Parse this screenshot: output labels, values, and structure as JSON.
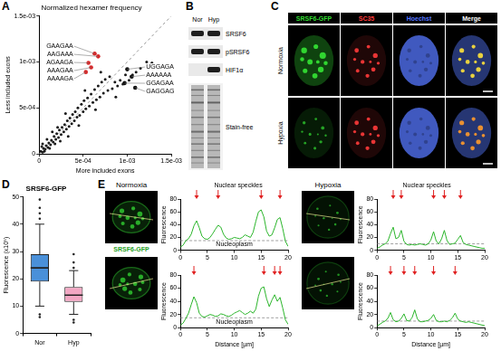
{
  "chart_data": [
    {
      "panel": "A",
      "type": "scatter",
      "title": "Normalized hexamer frequency",
      "xlabel": "More included exons",
      "ylabel": "Less included exons",
      "x": [
        2e-05,
        4e-05,
        5e-05,
        7e-05,
        8e-05,
        0.0001,
        0.00011,
        0.00013,
        0.00014,
        0.00016,
        0.00017,
        0.00019,
        0.0002,
        0.00022,
        0.00023,
        0.00025,
        0.00026,
        0.00028,
        0.00029,
        0.00031,
        0.00032,
        0.00034,
        0.00035,
        0.00037,
        0.00038,
        0.0004,
        0.00041,
        0.00043,
        0.00044,
        0.00046,
        0.00048,
        0.0005,
        0.00051,
        0.00053,
        0.00055,
        0.00057,
        0.00059,
        0.00061,
        0.00063,
        0.00065,
        0.00067,
        0.00069,
        0.00071,
        0.00073,
        0.00075,
        0.00078,
        0.0008,
        0.00083,
        0.00086,
        0.00089,
        0.00092,
        0.00095,
        0.00098,
        0.00102,
        0.00106,
        0.0011,
        0.00115,
        0.00122,
        0.00128,
        0.00015,
        0.00024,
        0.0003,
        0.00045,
        0.00052,
        0.00064,
        0.00033,
        9e-05,
        0.0007,
        0.00087,
        3e-05,
        6e-05,
        0.00012,
        4e-05,
        0.00018,
        0.00021
      ],
      "values": [
        3e-05,
        2e-05,
        6e-05,
        5e-05,
        9e-05,
        7e-05,
        0.00012,
        0.0001,
        0.00015,
        0.00013,
        0.00019,
        0.00016,
        0.00022,
        0.00018,
        0.00026,
        0.00021,
        0.00029,
        0.00024,
        0.00032,
        0.00027,
        0.00036,
        0.0003,
        0.00039,
        0.00033,
        0.00043,
        0.00036,
        0.00046,
        0.0004,
        0.0005,
        0.00042,
        0.00054,
        0.00046,
        0.00058,
        0.00049,
        0.00061,
        0.00052,
        0.00065,
        0.00056,
        0.0007,
        0.00059,
        0.00074,
        0.00062,
        0.00078,
        0.00066,
        0.00081,
        0.00069,
        0.00084,
        0.00071,
        0.00078,
        0.00074,
        0.0008,
        0.00076,
        0.00086,
        0.0008,
        0.00086,
        0.00089,
        0.00093,
        0.001,
        0.00099,
        0.00024,
        0.00014,
        0.00044,
        0.00031,
        0.00069,
        0.00048,
        0.00019,
        0.00016,
        0.00089,
        0.00062,
        8e-05,
        3e-05,
        6e-05,
        0.00011,
        0.00011,
        0.00029
      ],
      "color": "#1a1a1a",
      "xlim": [
        0,
        0.0015
      ],
      "ylim": [
        0,
        0.0015
      ],
      "xticks": [
        0,
        {
          "value": 0.0005,
          "label": "5e-04"
        },
        {
          "value": 0.001,
          "label": "1e-03"
        },
        {
          "value": 0.0015,
          "label": "1.5e-03"
        }
      ],
      "yticks": [
        0,
        {
          "value": 0.0005,
          "label": "5e-04"
        },
        {
          "value": 0.001,
          "label": "1e-03"
        },
        {
          "value": 0.0015,
          "label": "1.5e-03"
        }
      ],
      "grid": false,
      "annotations": [
        {
          "text": "GAAGAA",
          "x": 0.00063,
          "y": 0.00109,
          "color": "#d62728"
        },
        {
          "text": "AAGAAA",
          "x": 0.00067,
          "y": 0.00106,
          "color": "#d62728"
        },
        {
          "text": "AGAAGA",
          "x": 0.00056,
          "y": 0.00099,
          "color": "#d62728"
        },
        {
          "text": "AAAGAA",
          "x": 0.00059,
          "y": 0.00094,
          "color": "#d62728"
        },
        {
          "text": "AAAAGA",
          "x": 0.00053,
          "y": 0.00089,
          "color": "#d62728"
        },
        {
          "text": "UGGAGA",
          "x": 0.001,
          "y": 0.00092,
          "color": "#111111"
        },
        {
          "text": "AAAAAA",
          "x": 0.00105,
          "y": 0.00084,
          "color": "#111111"
        },
        {
          "text": "GGAGAA",
          "x": 0.00097,
          "y": 0.00077,
          "color": "#111111"
        },
        {
          "text": "GAGGAG",
          "x": 0.00109,
          "y": 0.00072,
          "color": "#111111"
        }
      ]
    },
    {
      "panel": "D",
      "type": "box",
      "title": "SRSF6-GFP",
      "ylabel": "Fluorescence (x10⁵)",
      "categories": [
        "Nor",
        "Hyp"
      ],
      "colors": [
        "#4a90d9",
        "#f2a7c3"
      ],
      "boxes": [
        {
          "min": 10,
          "q1": 19,
          "median": 24,
          "q3": 29,
          "max": 40,
          "outliers": [
            6,
            7,
            42,
            44,
            46,
            49
          ]
        },
        {
          "min": 7,
          "q1": 11.5,
          "median": 14,
          "q3": 17,
          "max": 23,
          "outliers": [
            4,
            5,
            24,
            26,
            29
          ]
        }
      ],
      "ylim": [
        0,
        50
      ],
      "yticks": [
        0,
        10,
        20,
        30,
        40,
        50
      ],
      "grid": false
    },
    {
      "type": "line",
      "ylabel": "Fluorescence",
      "x": [
        0,
        0.5,
        1,
        1.5,
        2,
        2.5,
        3,
        3.5,
        4,
        4.5,
        5,
        5.5,
        6,
        6.5,
        7,
        7.5,
        8,
        8.5,
        9,
        9.5,
        10,
        10.5,
        11,
        11.5,
        12,
        12.5,
        13,
        13.5,
        14,
        14.5,
        15,
        15.5,
        16,
        16.5,
        17,
        17.5,
        18,
        18.5,
        19,
        19.5,
        20
      ],
      "values": [
        5,
        8,
        15,
        18,
        25,
        38,
        46,
        35,
        22,
        18,
        17,
        20,
        26,
        33,
        39,
        36,
        25,
        19,
        17,
        18,
        20,
        19,
        18,
        20,
        24,
        22,
        20,
        28,
        45,
        60,
        63,
        52,
        30,
        22,
        24,
        35,
        48,
        51,
        34,
        14,
        6
      ],
      "color": "#2bb52b",
      "xlim": [
        0,
        20
      ],
      "xticks": [
        0,
        5,
        10,
        15,
        20
      ],
      "ylim": [
        0,
        80
      ],
      "yticks": [
        0,
        20,
        40,
        60,
        80
      ],
      "grid": false,
      "baseline": 15,
      "arrows": [
        3,
        7,
        15,
        18.5
      ],
      "annotations": [
        {
          "text": "Nuclear speckles",
          "anchor": "arrows"
        },
        {
          "text": "Nucleoplasm",
          "anchor": "baseline"
        }
      ]
    },
    {
      "type": "line",
      "xlabel": "Distance [µm]",
      "ylabel": "Fluorescence",
      "x": [
        0,
        0.5,
        1,
        1.5,
        2,
        2.5,
        3,
        3.5,
        4,
        4.5,
        5,
        5.5,
        6,
        6.5,
        7,
        7.5,
        8,
        8.5,
        9,
        9.5,
        10,
        10.5,
        11,
        11.5,
        12,
        12.5,
        13,
        13.5,
        14,
        14.5,
        15,
        15.5,
        16,
        16.5,
        17,
        17.5,
        18,
        18.5,
        19,
        19.5,
        20
      ],
      "values": [
        4,
        7,
        14,
        22,
        35,
        47,
        38,
        22,
        17,
        16,
        18,
        20,
        19,
        17,
        18,
        21,
        20,
        18,
        17,
        19,
        22,
        24,
        26,
        23,
        20,
        22,
        25,
        22,
        28,
        48,
        60,
        62,
        44,
        32,
        42,
        50,
        40,
        46,
        30,
        12,
        5
      ],
      "color": "#2bb52b",
      "xlim": [
        0,
        20
      ],
      "xticks": [
        0,
        5,
        10,
        15,
        20
      ],
      "ylim": [
        0,
        80
      ],
      "yticks": [
        0,
        20,
        40,
        60,
        80
      ],
      "grid": false,
      "baseline": 15,
      "arrows": [
        2.5,
        15.5,
        17.5,
        18.5
      ],
      "annotations": [
        {
          "text": "Nucleoplasm",
          "anchor": "baseline"
        }
      ]
    },
    {
      "type": "line",
      "ylabel": "Fluorescence",
      "x": [
        0,
        0.5,
        1,
        1.5,
        2,
        2.5,
        3,
        3.5,
        4,
        4.5,
        5,
        5.5,
        6,
        6.5,
        7,
        7.5,
        8,
        8.5,
        9,
        9.5,
        10,
        10.5,
        11,
        11.5,
        12,
        12.5,
        13,
        13.5,
        14,
        14.5,
        15,
        15.5,
        16,
        16.5,
        17,
        17.5,
        18,
        18.5,
        19,
        19.5,
        20
      ],
      "values": [
        3,
        5,
        8,
        10,
        14,
        26,
        36,
        18,
        20,
        31,
        14,
        9,
        8,
        9,
        8,
        9,
        10,
        9,
        8,
        10,
        16,
        29,
        14,
        10,
        18,
        31,
        15,
        9,
        10,
        11,
        17,
        23,
        12,
        9,
        8,
        7,
        6,
        5,
        4,
        3,
        3
      ],
      "color": "#2bb52b",
      "xlim": [
        0,
        20
      ],
      "xticks": [
        0,
        5,
        10,
        15,
        20
      ],
      "ylim": [
        0,
        80
      ],
      "yticks": [
        0,
        20,
        40,
        60,
        80
      ],
      "grid": false,
      "baseline": 10,
      "arrows": [
        3,
        4.5,
        10.5,
        12.5,
        15.5
      ],
      "annotations": [
        {
          "text": "Nuclear speckles",
          "anchor": "arrows"
        }
      ]
    },
    {
      "type": "line",
      "xlabel": "Distance [µm]",
      "ylabel": "Fluorescence",
      "x": [
        0,
        0.5,
        1,
        1.5,
        2,
        2.5,
        3,
        3.5,
        4,
        4.5,
        5,
        5.5,
        6,
        6.5,
        7,
        7.5,
        8,
        8.5,
        9,
        9.5,
        10,
        10.5,
        11,
        11.5,
        12,
        12.5,
        13,
        13.5,
        14,
        14.5,
        15,
        15.5,
        16,
        16.5,
        17,
        17.5,
        18,
        18.5,
        19,
        19.5,
        20
      ],
      "values": [
        3,
        5,
        8,
        10,
        14,
        23,
        12,
        9,
        10,
        14,
        21,
        11,
        10,
        15,
        27,
        13,
        9,
        9,
        10,
        11,
        14,
        20,
        11,
        9,
        9,
        10,
        9,
        11,
        15,
        22,
        13,
        10,
        9,
        8,
        9,
        8,
        7,
        6,
        5,
        4,
        3
      ],
      "color": "#2bb52b",
      "xlim": [
        0,
        20
      ],
      "xticks": [
        0,
        5,
        10,
        15,
        20
      ],
      "ylim": [
        0,
        80
      ],
      "yticks": [
        0,
        20,
        40,
        60,
        80
      ],
      "grid": false,
      "baseline": 10,
      "arrows": [
        2.5,
        5,
        7,
        10.5,
        14.5
      ]
    }
  ],
  "blot": {
    "panel": "B",
    "lanes": [
      "Nor",
      "Hyp"
    ],
    "rows": [
      {
        "label": "SRSF6",
        "present": [
          true,
          true
        ]
      },
      {
        "label": "pSRSF6",
        "present": [
          true,
          true
        ]
      },
      {
        "label": "HIF1α",
        "present": [
          false,
          true
        ]
      },
      {
        "label": "Stain-free",
        "present": [
          true,
          true
        ]
      }
    ]
  },
  "microscopy": {
    "panel": "C",
    "columns": [
      {
        "label": "SRSF6-GFP",
        "color": "#33dd33"
      },
      {
        "label": "SC35",
        "color": "#ff3b3b"
      },
      {
        "label": "Hoechst",
        "color": "#5577ff"
      },
      {
        "label": "Merge",
        "color": "#ffffff"
      }
    ],
    "rows": [
      "Normoxia",
      "Hypoxia"
    ]
  },
  "profile_images": {
    "panel": "E",
    "groups": [
      {
        "title": "Normoxia",
        "label": "SRSF6-GFP",
        "color": "#1f9f1f"
      },
      {
        "title": "Hypoxia"
      }
    ]
  }
}
